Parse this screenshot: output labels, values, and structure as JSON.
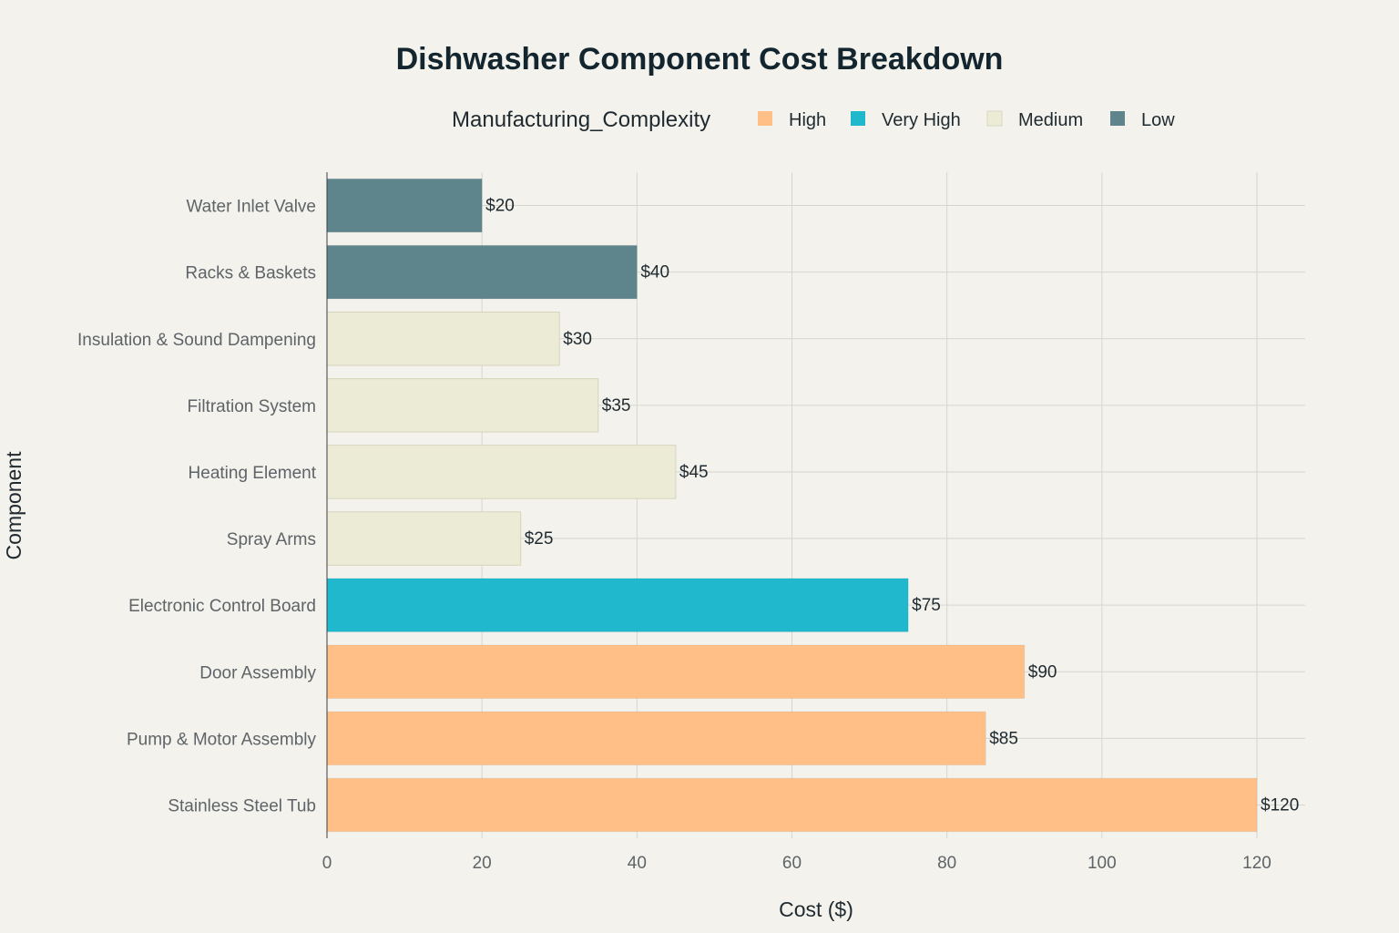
{
  "chart_data": {
    "type": "bar",
    "orientation": "horizontal",
    "title": "Dishwasher Component Cost Breakdown",
    "xlabel": "Cost ($)",
    "ylabel": "Component",
    "xlim": [
      0,
      126
    ],
    "xticks": [
      0,
      20,
      40,
      60,
      80,
      100,
      120
    ],
    "grid": true,
    "legend": {
      "title": "Manufacturing_Complexity",
      "placement": "top",
      "entries": [
        {
          "name": "High",
          "color": "#ffbf87"
        },
        {
          "name": "Very High",
          "color": "#1fb8cd"
        },
        {
          "name": "Medium",
          "color": "#ecebd6"
        },
        {
          "name": "Low",
          "color": "#5e858c"
        }
      ]
    },
    "bars": [
      {
        "category": "Water Inlet Valve",
        "value": 20,
        "label": "$20",
        "complexity": "Low"
      },
      {
        "category": "Racks & Baskets",
        "value": 40,
        "label": "$40",
        "complexity": "Low"
      },
      {
        "category": "Insulation & Sound Dampening",
        "value": 30,
        "label": "$30",
        "complexity": "Medium"
      },
      {
        "category": "Filtration System",
        "value": 35,
        "label": "$35",
        "complexity": "Medium"
      },
      {
        "category": "Heating Element",
        "value": 45,
        "label": "$45",
        "complexity": "Medium"
      },
      {
        "category": "Spray Arms",
        "value": 25,
        "label": "$25",
        "complexity": "Medium"
      },
      {
        "category": "Electronic Control Board",
        "value": 75,
        "label": "$75",
        "complexity": "Very High"
      },
      {
        "category": "Door Assembly",
        "value": 90,
        "label": "$90",
        "complexity": "High"
      },
      {
        "category": "Pump & Motor Assembly",
        "value": 85,
        "label": "$85",
        "complexity": "High"
      },
      {
        "category": "Stainless Steel Tub",
        "value": 120,
        "label": "$120",
        "complexity": "High"
      }
    ]
  }
}
